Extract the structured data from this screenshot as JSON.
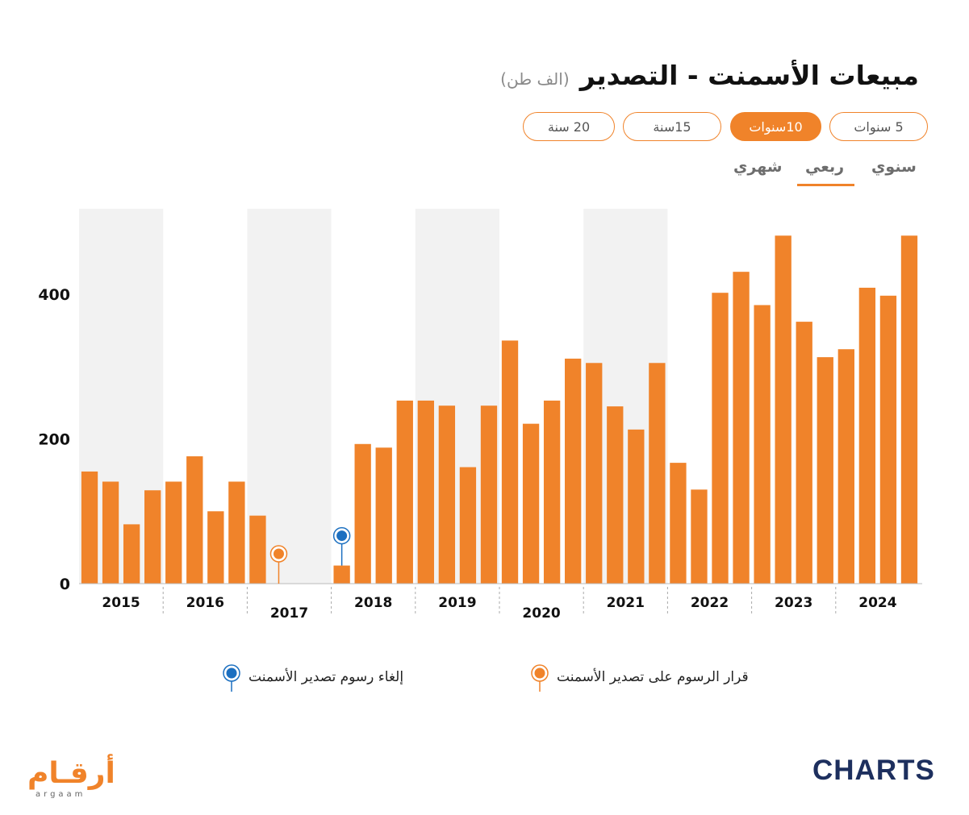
{
  "header": {
    "title": "مبيعات الأسمنت - التصدير",
    "unit": "(الف طن)"
  },
  "range_tabs": [
    {
      "label": "5 سنوات",
      "active": false
    },
    {
      "label": "10سنوات",
      "active": true
    },
    {
      "label": "15سنة",
      "active": false
    },
    {
      "label": "20 سنة",
      "active": false
    }
  ],
  "frequency_tabs": [
    {
      "label": "سنوي",
      "active": false
    },
    {
      "label": "ربعي",
      "active": true
    },
    {
      "label": "شهري",
      "active": false
    }
  ],
  "legend": {
    "imposed": "قرار الرسوم على تصدير الأسمنت",
    "removed": "إلغاء رسوم تصدير الأسمنت"
  },
  "colors": {
    "bar": "#f0832a",
    "shade": "#f2f2f2",
    "imposed_marker": "#f0832a",
    "removed_marker": "#1b6fc0"
  },
  "chart_data": {
    "type": "bar",
    "ylim": [
      0,
      520
    ],
    "yticks": [
      0,
      200,
      400
    ],
    "categories": [
      "2015 Q1",
      "2015 Q2",
      "2015 Q3",
      "2015 Q4",
      "2016 Q1",
      "2016 Q2",
      "2016 Q3",
      "2016 Q4",
      "2017 Q1",
      "2017 Q2",
      "2017 Q3",
      "2017 Q4",
      "2018 Q1",
      "2018 Q2",
      "2018 Q3",
      "2018 Q4",
      "2019 Q1",
      "2019 Q2",
      "2019 Q3",
      "2019 Q4",
      "2020 Q1",
      "2020 Q2",
      "2020 Q3",
      "2020 Q4",
      "2021 Q1",
      "2021 Q2",
      "2021 Q3",
      "2021 Q4",
      "2022 Q1",
      "2022 Q2",
      "2022 Q3",
      "2022 Q4",
      "2023 Q1",
      "2023 Q2",
      "2023 Q3",
      "2023 Q4",
      "2024 Q1",
      "2024 Q2",
      "2024 Q3",
      "2024 Q4"
    ],
    "values": [
      155,
      141,
      82,
      129,
      141,
      176,
      100,
      141,
      94,
      0,
      0,
      0,
      25,
      193,
      188,
      253,
      253,
      246,
      161,
      246,
      336,
      221,
      253,
      311,
      305,
      245,
      213,
      305,
      167,
      130,
      402,
      431,
      385,
      481,
      362,
      313,
      324,
      409,
      398,
      481
    ],
    "years": [
      "2015",
      "2016",
      "2017",
      "2018",
      "2019",
      "2020",
      "2021",
      "2022",
      "2023",
      "2024"
    ],
    "shaded_years": [
      "2015",
      "2017",
      "2019",
      "2021"
    ],
    "markers": [
      {
        "type": "imposed",
        "category": "2017 Q2"
      },
      {
        "type": "removed",
        "category": "2018 Q1"
      }
    ]
  },
  "branding": {
    "left_logo_ar": "أرقـام",
    "left_logo_en": "argaam",
    "right_logo": "CHARTS"
  }
}
